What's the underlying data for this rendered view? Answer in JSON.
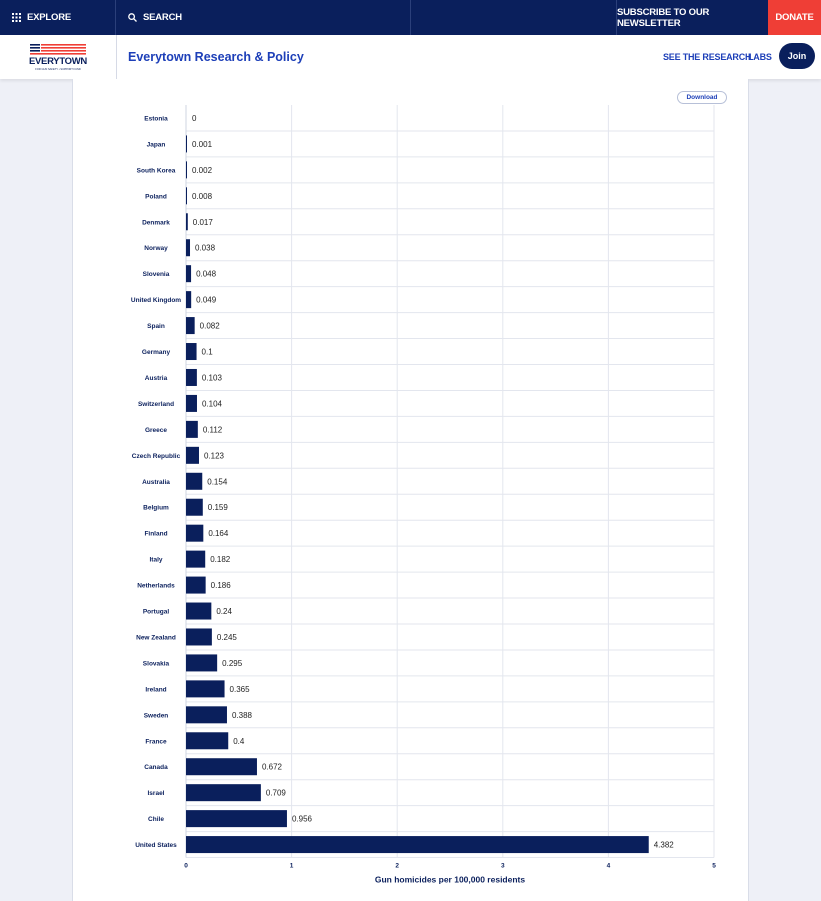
{
  "topbar": {
    "explore": "EXPLORE",
    "search": "SEARCH",
    "newsletter": "SUBSCRIBE TO OUR NEWSLETTER",
    "donate": "DONATE"
  },
  "navbar": {
    "logo_text": "EVERYTOWN",
    "logo_subtext": "FOR GUN SAFETY • SUPPORT FUND",
    "site_title": "Everytown Research & Policy",
    "see_research": "SEE THE RESEARCH",
    "labs": "LABS",
    "join": "Join"
  },
  "download_label": "Download",
  "colors": {
    "navy": "#0a1f5c",
    "accent_red": "#ef3e36",
    "link_blue": "#1d3fb8",
    "bar": "#0a1f5c"
  },
  "chart_data": {
    "type": "bar",
    "orientation": "horizontal",
    "categories": [
      "Estonia",
      "Japan",
      "South Korea",
      "Poland",
      "Denmark",
      "Norway",
      "Slovenia",
      "United Kingdom",
      "Spain",
      "Germany",
      "Austria",
      "Switzerland",
      "Greece",
      "Czech Republic",
      "Australia",
      "Belgium",
      "Finland",
      "Italy",
      "Netherlands",
      "Portugal",
      "New Zealand",
      "Slovakia",
      "Ireland",
      "Sweden",
      "France",
      "Canada",
      "Israel",
      "Chile",
      "United States"
    ],
    "values": [
      0,
      0.001,
      0.002,
      0.008,
      0.017,
      0.038,
      0.048,
      0.049,
      0.082,
      0.1,
      0.103,
      0.104,
      0.112,
      0.123,
      0.154,
      0.159,
      0.164,
      0.182,
      0.186,
      0.24,
      0.245,
      0.295,
      0.365,
      0.388,
      0.4,
      0.672,
      0.709,
      0.956,
      4.382
    ],
    "value_labels": [
      "0",
      "0.001",
      "0.002",
      "0.008",
      "0.017",
      "0.038",
      "0.048",
      "0.049",
      "0.082",
      "0.1",
      "0.103",
      "0.104",
      "0.112",
      "0.123",
      "0.154",
      "0.159",
      "0.164",
      "0.182",
      "0.186",
      "0.24",
      "0.245",
      "0.295",
      "0.365",
      "0.388",
      "0.4",
      "0.672",
      "0.709",
      "0.956",
      "4.382"
    ],
    "xlabel": "Gun homicides per 100,000 residents",
    "xlim": [
      0,
      5
    ],
    "xticks": [
      "0",
      "1",
      "2",
      "3",
      "4",
      "5"
    ],
    "grid": true
  }
}
